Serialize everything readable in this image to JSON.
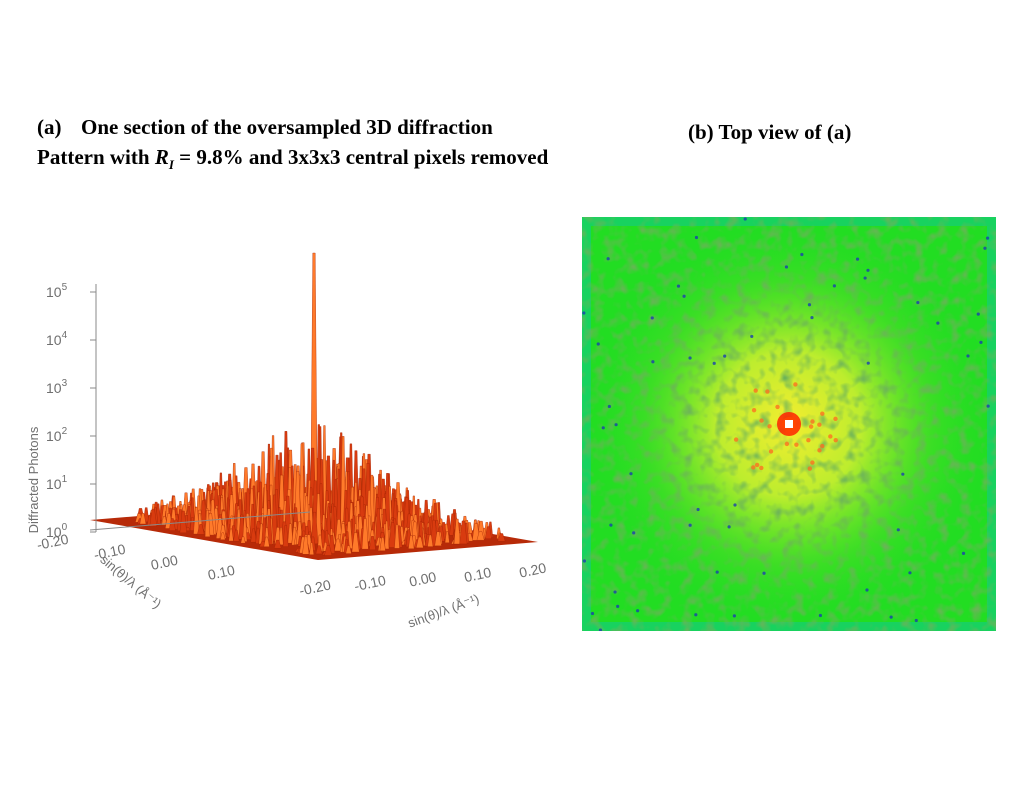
{
  "caption_a": {
    "tag": "(a)",
    "line1": "One section of the oversampled 3D diffraction",
    "line2_pre": "Pattern with ",
    "symbol": "R",
    "subscript": "I",
    "line2_post": " = 9.8% and 3x3x3 central pixels removed"
  },
  "caption_b": "(b) Top view of (a)",
  "chart_data": [
    {
      "type": "surface",
      "ylabel": "Diffracted Photons",
      "yscale": "log",
      "ylim": [
        1,
        100000
      ],
      "z_ticks": [
        "10^0",
        "10^1",
        "10^2",
        "10^3",
        "10^4",
        "10^5"
      ],
      "x_axis_label": "sin(θ)/λ (Å⁻¹)",
      "y_axis_label": "sin(θ)/λ (Å⁻¹)",
      "x_ticks": [
        "-0.20",
        "-0.10",
        "0.00",
        "0.10",
        "0.20"
      ],
      "y_ticks": [
        "-0.20",
        "-0.10",
        "0.00",
        "0.10"
      ],
      "xlim": [
        -0.2,
        0.2
      ],
      "colors": {
        "surface": "#d83b0f",
        "highlight": "#ff7a2a",
        "base": "#b72a08"
      }
    },
    {
      "type": "heatmap",
      "colors": {
        "background": "#22dd22",
        "mid": "#c8f030",
        "center": "#ff2200",
        "edge": "#12cc88"
      }
    }
  ]
}
